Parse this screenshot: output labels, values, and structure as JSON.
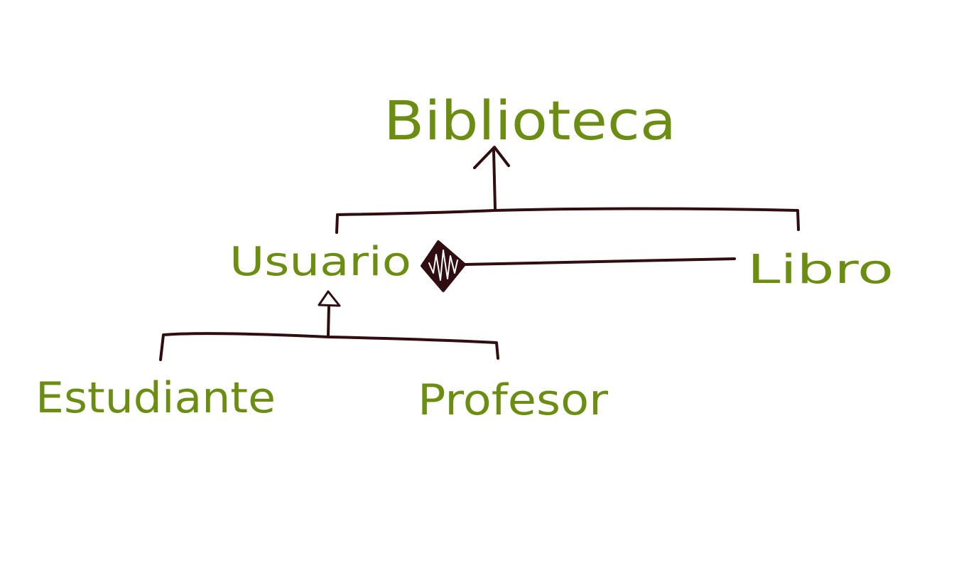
{
  "diagram": {
    "colors": {
      "label": "#6b8e12",
      "line": "#2f0d10"
    },
    "nodes": {
      "biblioteca": "Biblioteca",
      "usuario": "Usuario",
      "libro": "Libro",
      "estudiante": "Estudiante",
      "profesor": "Profesor"
    }
  }
}
